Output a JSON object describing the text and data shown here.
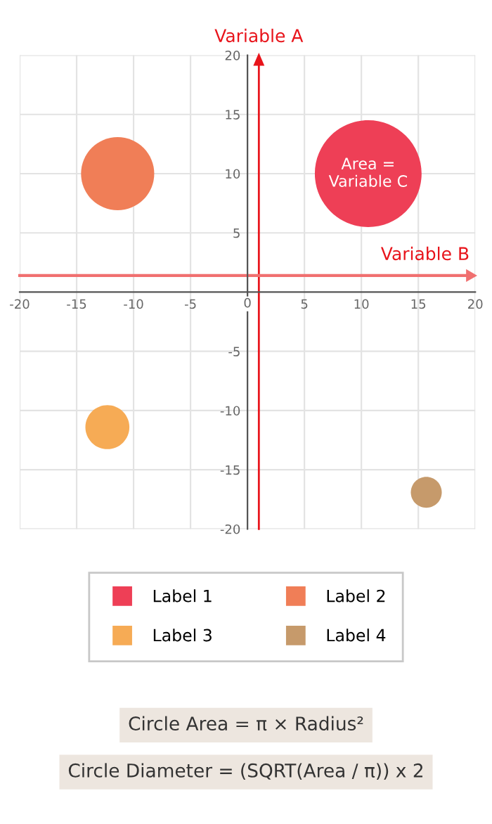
{
  "chart_data": {
    "type": "bubble",
    "xlabel": "Variable B",
    "ylabel": "Variable A",
    "series": [
      {
        "name": "Label 1",
        "color": "#ee3f56",
        "x": [
          10.6
        ],
        "values": [
          10.0
        ],
        "sizes": [
          1
        ]
      },
      {
        "name": "Label 2",
        "color": "#f07e57",
        "x": [
          -11.4
        ],
        "values": [
          10.0
        ],
        "sizes": [
          0.47
        ]
      },
      {
        "name": "Label 3",
        "color": "#f6ab55",
        "x": [
          -12.3
        ],
        "values": [
          -11.4
        ],
        "sizes": [
          0.17
        ]
      },
      {
        "name": "Label 4",
        "color": "#c69a6b",
        "x": [
          15.7
        ],
        "values": [
          -16.9
        ],
        "sizes": [
          0.084
        ]
      }
    ],
    "xlim": [
      -20,
      20
    ],
    "ylim": [
      -20,
      20
    ],
    "xticks": [
      -20,
      -15,
      -10,
      -5,
      0,
      5,
      10,
      15,
      20
    ],
    "yticks": [
      -20,
      -15,
      -10,
      -5,
      5,
      10,
      15,
      20
    ],
    "grid": true,
    "legend": "bottom",
    "marker": "circle",
    "ref_lines": [
      {
        "axis": "x",
        "value": 1,
        "color": "#e8141b"
      },
      {
        "axis": "y",
        "value": 1.4,
        "color": "#f07070"
      }
    ],
    "annotations": [
      {
        "text": "Area =\nVariable C",
        "x": 10.6,
        "y": 10.0
      },
      "Circle Area = π × Radius²",
      "Circle Diameter = (SQRT(Area / π)) x 2"
    ]
  }
}
